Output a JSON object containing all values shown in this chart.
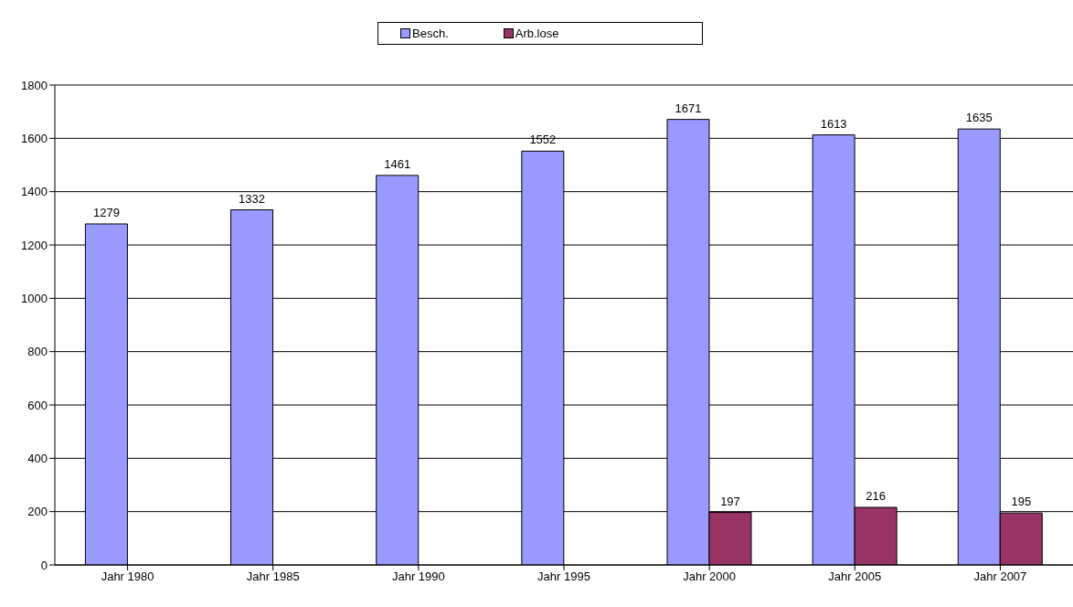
{
  "chart_data": {
    "type": "bar",
    "categories": [
      "Jahr 1980",
      "Jahr 1985",
      "Jahr 1990",
      "Jahr 1995",
      "Jahr 2000",
      "Jahr 2005",
      "Jahr 2007"
    ],
    "series": [
      {
        "name": "Besch.",
        "color": "#9999ff",
        "values": [
          1279,
          1332,
          1461,
          1552,
          1671,
          1613,
          1635
        ]
      },
      {
        "name": "Arb.lose",
        "color": "#993366",
        "values": [
          null,
          null,
          null,
          null,
          197,
          216,
          195
        ]
      }
    ],
    "ylim": [
      0,
      1800
    ],
    "yticks": [
      0,
      200,
      400,
      600,
      800,
      1000,
      1200,
      1400,
      1600,
      1800
    ],
    "grid": "y",
    "legend": "top",
    "data_labels": true
  }
}
